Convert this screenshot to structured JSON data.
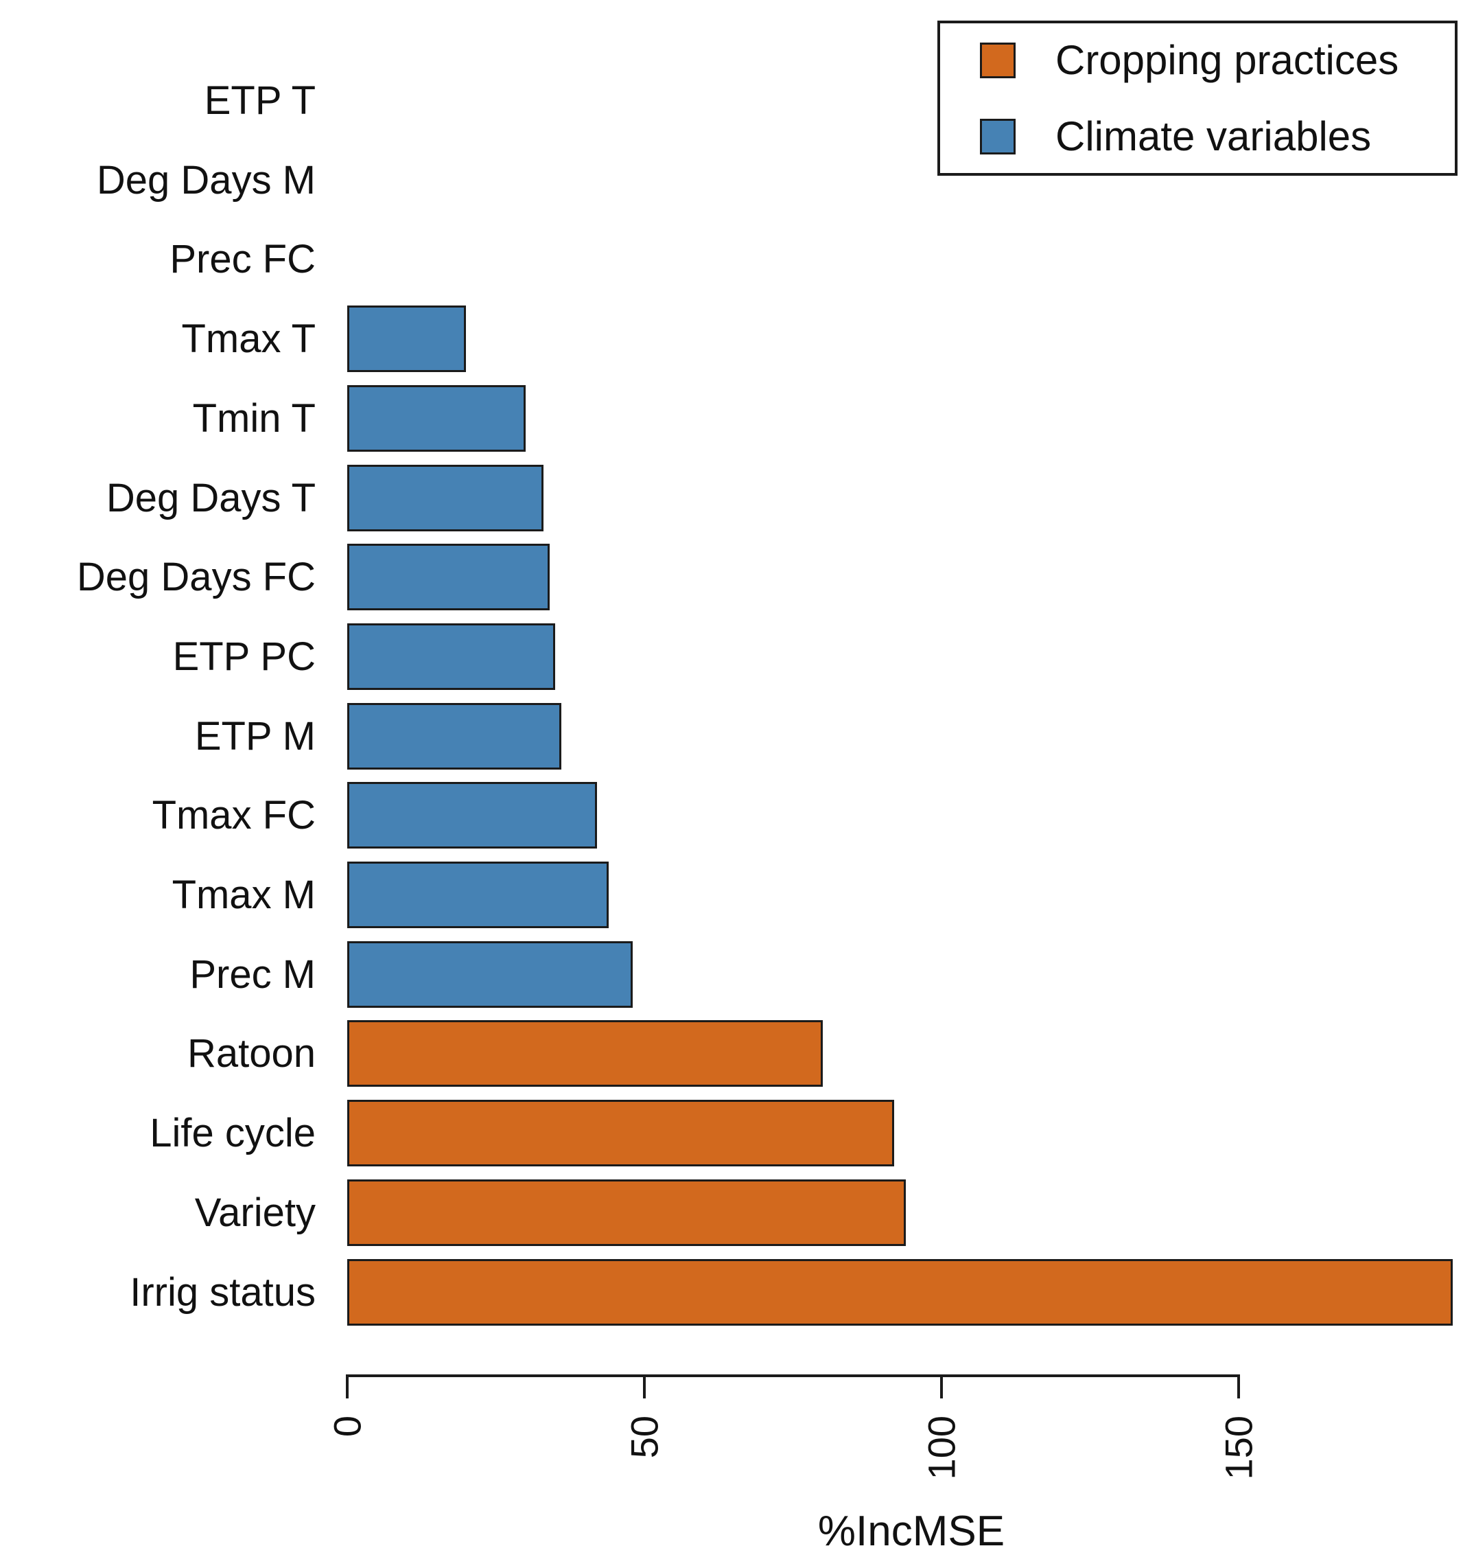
{
  "chart_data": {
    "type": "bar",
    "orientation": "horizontal",
    "title": "",
    "xlabel": "%IncMSE",
    "categories": [
      "ETP T",
      "Deg Days M",
      "Prec FC",
      "Tmax T",
      "Tmin T",
      "Deg Days T",
      "Deg Days FC",
      "ETP PC",
      "ETP M",
      "Tmax FC",
      "Tmax M",
      "Prec M",
      "Ratoon",
      "Life cycle",
      "Variety",
      "Irrig status"
    ],
    "values": [
      0,
      0,
      0,
      20,
      30,
      33,
      34,
      35,
      36,
      42,
      44,
      48,
      80,
      92,
      94,
      186
    ],
    "groups": [
      "climate",
      "climate",
      "climate",
      "climate",
      "climate",
      "climate",
      "climate",
      "climate",
      "climate",
      "climate",
      "climate",
      "climate",
      "cropping",
      "cropping",
      "cropping",
      "cropping"
    ],
    "group_colors": {
      "cropping": "#D2691E",
      "climate": "#4682B4"
    },
    "bar_border_color": "#1b1b1b",
    "x_ticks": [
      0,
      50,
      100,
      150
    ],
    "xlim": [
      0,
      190
    ],
    "grid": false,
    "legend_position": "top-right",
    "legend": [
      {
        "label": "Cropping practices",
        "group": "cropping",
        "color": "#D2691E"
      },
      {
        "label": "Climate variables",
        "group": "climate",
        "color": "#4682B4"
      }
    ]
  }
}
